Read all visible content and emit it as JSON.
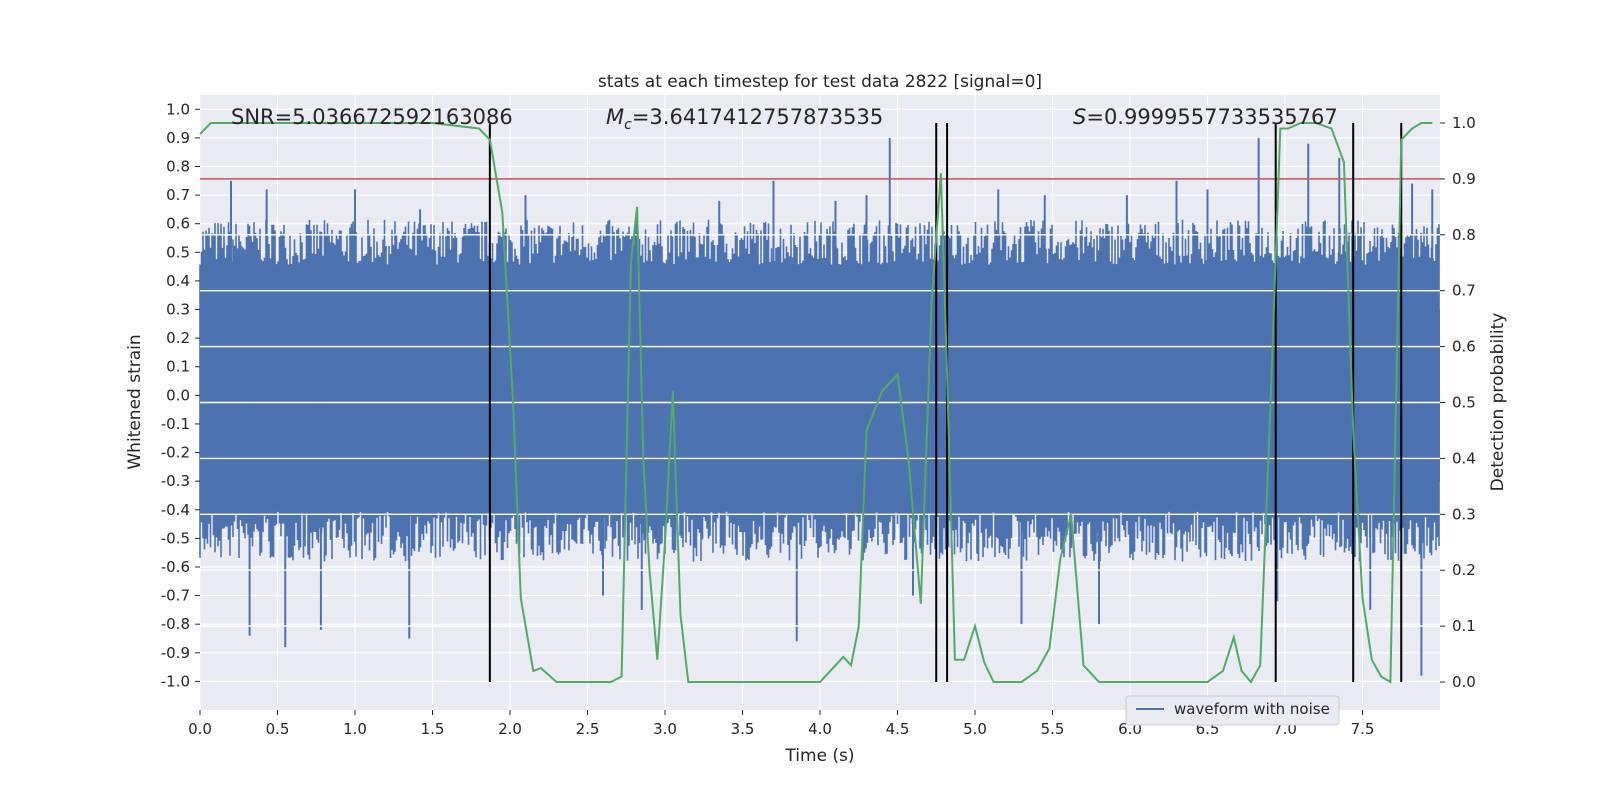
{
  "chart_data": {
    "type": "line",
    "title": "stats at each timestep for test data 2822 [signal=0]",
    "xlabel": "Time (s)",
    "ylabel_left": "Whitened strain",
    "ylabel_right": "Detection probability",
    "xlim": [
      0.0,
      8.0
    ],
    "ylim_left": [
      -1.1,
      1.05
    ],
    "ylim_right": [
      -0.05,
      1.05
    ],
    "grid": true,
    "x_ticks": [
      "0.0",
      "0.5",
      "1.0",
      "1.5",
      "2.0",
      "2.5",
      "3.0",
      "3.5",
      "4.0",
      "4.5",
      "5.0",
      "5.5",
      "6.0",
      "6.5",
      "7.0",
      "7.5"
    ],
    "y_left_ticks": [
      "1.0",
      "0.9",
      "0.8",
      "0.7",
      "0.6",
      "0.5",
      "0.4",
      "0.3",
      "0.2",
      "0.1",
      "0.0",
      "-0.1",
      "-0.2",
      "-0.3",
      "-0.4",
      "-0.5",
      "-0.6",
      "-0.7",
      "-0.8",
      "-0.9",
      "-1.0"
    ],
    "y_right_ticks": [
      "1.0",
      "0.9",
      "0.8",
      "0.7",
      "0.6",
      "0.5",
      "0.4",
      "0.3",
      "0.2",
      "0.1",
      "0.0"
    ],
    "annotations": {
      "snr": "SNR=5.036672592163086",
      "mc_symbol": "M",
      "mc_sub": "c",
      "mc_value": "=3.6417412757873535",
      "s_symbol": "S",
      "s_value": "=0.9999557733535767"
    },
    "threshold": {
      "value": 0.9,
      "color": "#c44e52"
    },
    "vertical_lines": [
      1.87,
      4.75,
      4.82,
      6.94,
      7.44,
      7.75
    ],
    "legend": {
      "label": "waveform with noise",
      "location": "lower-right"
    },
    "series": [
      {
        "name": "waveform with noise",
        "axis": "left",
        "color": "#4c72b0",
        "envelope_upper": 0.52,
        "envelope_lower": -0.47,
        "spikes": [
          [
            0.2,
            0.75
          ],
          [
            0.32,
            -0.84
          ],
          [
            0.43,
            0.72
          ],
          [
            0.55,
            -0.88
          ],
          [
            0.78,
            -0.82
          ],
          [
            1.0,
            0.72
          ],
          [
            1.35,
            -0.85
          ],
          [
            1.42,
            0.65
          ],
          [
            2.1,
            0.7
          ],
          [
            2.6,
            -0.7
          ],
          [
            2.85,
            -0.75
          ],
          [
            3.35,
            0.68
          ],
          [
            3.7,
            0.75
          ],
          [
            3.85,
            -0.86
          ],
          [
            4.1,
            0.68
          ],
          [
            4.3,
            0.7
          ],
          [
            4.45,
            0.9
          ],
          [
            4.6,
            -0.7
          ],
          [
            5.15,
            0.72
          ],
          [
            5.3,
            -0.8
          ],
          [
            5.45,
            0.7
          ],
          [
            5.8,
            -0.8
          ],
          [
            5.98,
            0.7
          ],
          [
            6.3,
            0.75
          ],
          [
            6.5,
            0.72
          ],
          [
            6.83,
            0.9
          ],
          [
            6.95,
            -0.72
          ],
          [
            7.15,
            0.88
          ],
          [
            7.35,
            0.83
          ],
          [
            7.55,
            -0.75
          ],
          [
            7.82,
            0.74
          ],
          [
            7.88,
            -0.98
          ],
          [
            7.95,
            0.72
          ]
        ]
      },
      {
        "name": "detection probability",
        "axis": "right",
        "color": "#55a868",
        "x": [
          0.0,
          0.07,
          0.2,
          0.5,
          1.0,
          1.5,
          1.8,
          1.87,
          1.95,
          2.02,
          2.07,
          2.15,
          2.2,
          2.3,
          2.5,
          2.65,
          2.72,
          2.78,
          2.82,
          2.86,
          2.9,
          2.95,
          3.0,
          3.05,
          3.1,
          3.15,
          3.2,
          3.3,
          3.5,
          3.8,
          4.0,
          4.1,
          4.15,
          4.2,
          4.25,
          4.3,
          4.4,
          4.5,
          4.57,
          4.65,
          4.72,
          4.78,
          4.82,
          4.87,
          4.93,
          5.0,
          5.06,
          5.12,
          5.2,
          5.3,
          5.4,
          5.48,
          5.55,
          5.62,
          5.7,
          5.8,
          6.0,
          6.3,
          6.5,
          6.6,
          6.67,
          6.72,
          6.78,
          6.84,
          6.9,
          6.97,
          7.02,
          7.1,
          7.2,
          7.3,
          7.38,
          7.44,
          7.5,
          7.56,
          7.62,
          7.68,
          7.75,
          7.82,
          7.88,
          7.95
        ],
        "y": [
          0.98,
          1.0,
          1.0,
          1.0,
          1.0,
          1.0,
          0.99,
          0.97,
          0.84,
          0.5,
          0.15,
          0.02,
          0.025,
          0.0,
          0.0,
          0.0,
          0.01,
          0.75,
          0.85,
          0.4,
          0.2,
          0.04,
          0.25,
          0.52,
          0.12,
          0.0,
          0.0,
          0.0,
          0.0,
          0.0,
          0.0,
          0.03,
          0.045,
          0.03,
          0.1,
          0.45,
          0.52,
          0.55,
          0.4,
          0.14,
          0.68,
          0.91,
          0.55,
          0.04,
          0.04,
          0.1,
          0.035,
          0.0,
          0.0,
          0.0,
          0.02,
          0.06,
          0.22,
          0.3,
          0.03,
          0.0,
          0.0,
          0.0,
          0.0,
          0.02,
          0.08,
          0.02,
          0.0,
          0.03,
          0.45,
          0.99,
          0.99,
          1.0,
          1.0,
          0.99,
          0.93,
          0.45,
          0.15,
          0.04,
          0.01,
          0.0,
          0.97,
          0.99,
          1.0,
          1.0
        ]
      }
    ]
  }
}
